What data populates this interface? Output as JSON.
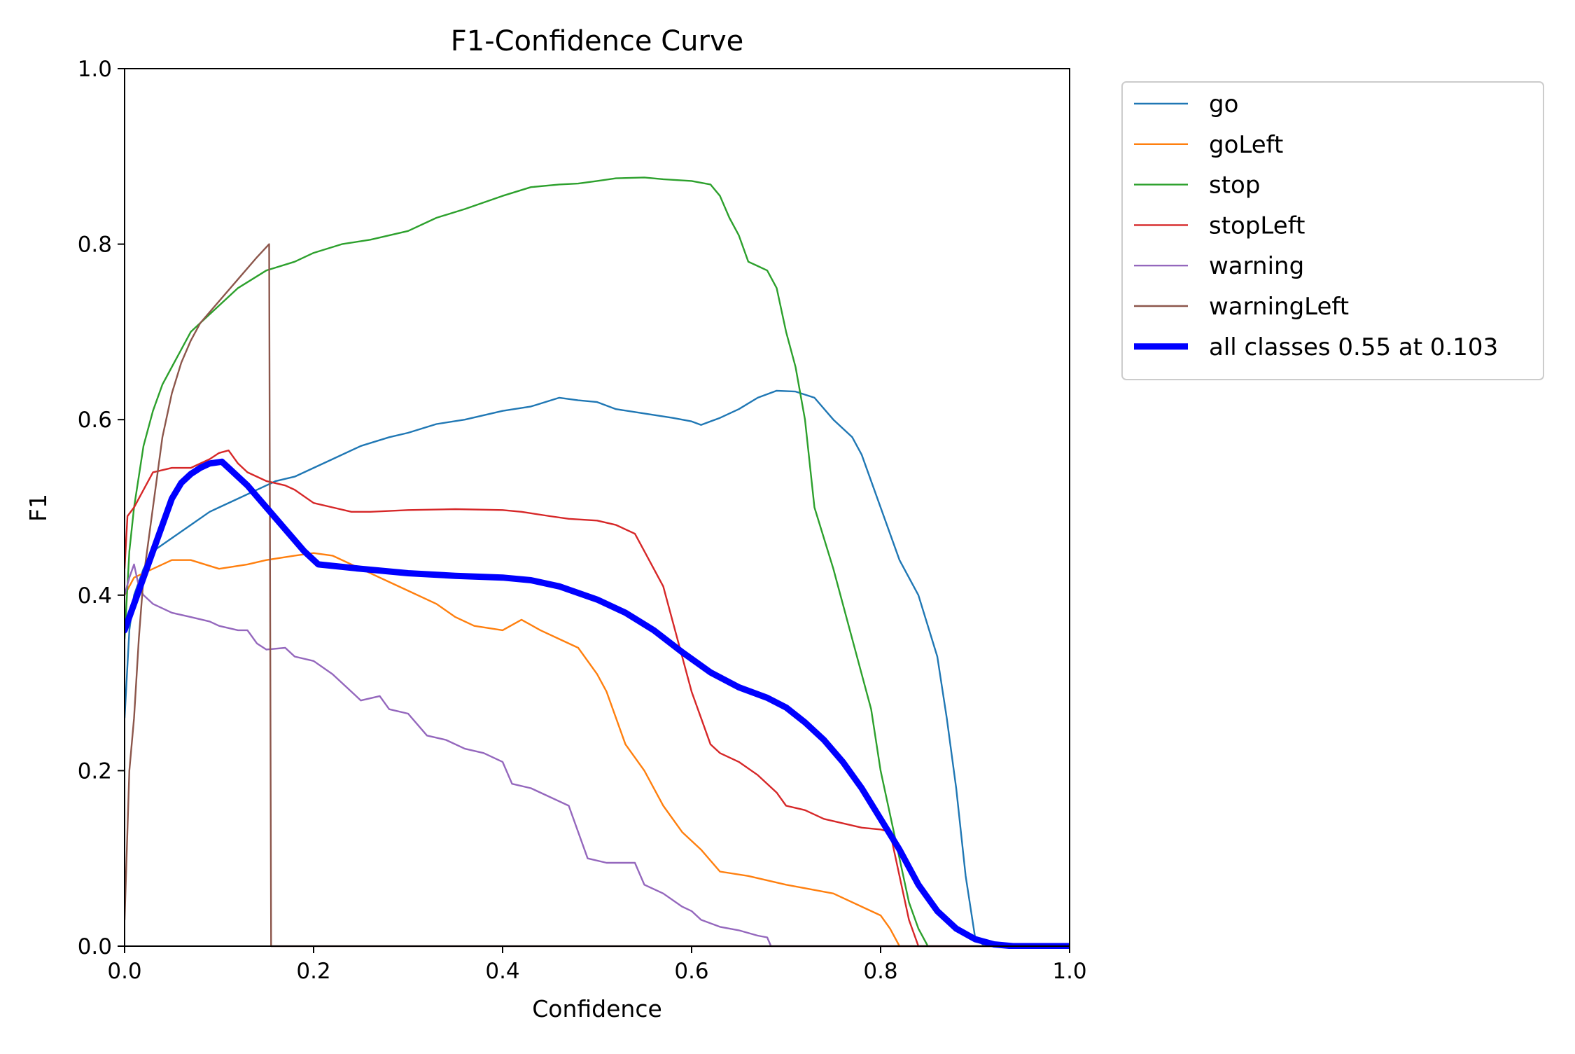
{
  "chart_data": {
    "type": "line",
    "title": "F1-Confidence Curve",
    "xlabel": "Confidence",
    "ylabel": "F1",
    "xlim": [
      0.0,
      1.0
    ],
    "ylim": [
      0.0,
      1.0
    ],
    "xticks": [
      "0.0",
      "0.2",
      "0.4",
      "0.6",
      "0.8",
      "1.0"
    ],
    "yticks": [
      "0.0",
      "0.2",
      "0.4",
      "0.6",
      "0.8",
      "1.0"
    ],
    "grid": false,
    "legend_position": "outside-top-right",
    "series": [
      {
        "name": "go",
        "color": "#1f77b4",
        "points": [
          [
            0.0,
            0.26
          ],
          [
            0.005,
            0.36
          ],
          [
            0.01,
            0.4
          ],
          [
            0.02,
            0.43
          ],
          [
            0.03,
            0.45
          ],
          [
            0.05,
            0.465
          ],
          [
            0.07,
            0.48
          ],
          [
            0.09,
            0.495
          ],
          [
            0.1,
            0.5
          ],
          [
            0.12,
            0.51
          ],
          [
            0.14,
            0.52
          ],
          [
            0.16,
            0.53
          ],
          [
            0.18,
            0.535
          ],
          [
            0.2,
            0.545
          ],
          [
            0.22,
            0.555
          ],
          [
            0.25,
            0.57
          ],
          [
            0.28,
            0.58
          ],
          [
            0.3,
            0.585
          ],
          [
            0.33,
            0.595
          ],
          [
            0.36,
            0.6
          ],
          [
            0.4,
            0.61
          ],
          [
            0.43,
            0.615
          ],
          [
            0.46,
            0.625
          ],
          [
            0.48,
            0.622
          ],
          [
            0.5,
            0.62
          ],
          [
            0.52,
            0.612
          ],
          [
            0.55,
            0.607
          ],
          [
            0.58,
            0.602
          ],
          [
            0.6,
            0.598
          ],
          [
            0.61,
            0.594
          ],
          [
            0.63,
            0.602
          ],
          [
            0.65,
            0.612
          ],
          [
            0.67,
            0.625
          ],
          [
            0.69,
            0.633
          ],
          [
            0.71,
            0.632
          ],
          [
            0.73,
            0.625
          ],
          [
            0.75,
            0.6
          ],
          [
            0.77,
            0.58
          ],
          [
            0.78,
            0.56
          ],
          [
            0.8,
            0.5
          ],
          [
            0.82,
            0.44
          ],
          [
            0.84,
            0.4
          ],
          [
            0.86,
            0.33
          ],
          [
            0.87,
            0.26
          ],
          [
            0.88,
            0.18
          ],
          [
            0.89,
            0.08
          ],
          [
            0.9,
            0.01
          ],
          [
            0.91,
            0.0
          ],
          [
            1.0,
            0.0
          ]
        ]
      },
      {
        "name": "goLeft",
        "color": "#ff7f0e",
        "points": [
          [
            0.0,
            0.4
          ],
          [
            0.01,
            0.42
          ],
          [
            0.03,
            0.43
          ],
          [
            0.05,
            0.44
          ],
          [
            0.07,
            0.44
          ],
          [
            0.1,
            0.43
          ],
          [
            0.13,
            0.435
          ],
          [
            0.15,
            0.44
          ],
          [
            0.18,
            0.445
          ],
          [
            0.2,
            0.448
          ],
          [
            0.22,
            0.445
          ],
          [
            0.25,
            0.43
          ],
          [
            0.28,
            0.415
          ],
          [
            0.3,
            0.405
          ],
          [
            0.33,
            0.39
          ],
          [
            0.35,
            0.375
          ],
          [
            0.37,
            0.365
          ],
          [
            0.4,
            0.36
          ],
          [
            0.42,
            0.372
          ],
          [
            0.44,
            0.36
          ],
          [
            0.46,
            0.35
          ],
          [
            0.48,
            0.34
          ],
          [
            0.5,
            0.31
          ],
          [
            0.51,
            0.29
          ],
          [
            0.52,
            0.26
          ],
          [
            0.53,
            0.23
          ],
          [
            0.55,
            0.2
          ],
          [
            0.57,
            0.16
          ],
          [
            0.59,
            0.13
          ],
          [
            0.61,
            0.11
          ],
          [
            0.63,
            0.085
          ],
          [
            0.66,
            0.08
          ],
          [
            0.7,
            0.07
          ],
          [
            0.75,
            0.06
          ],
          [
            0.78,
            0.045
          ],
          [
            0.8,
            0.035
          ],
          [
            0.81,
            0.02
          ],
          [
            0.82,
            0.0
          ],
          [
            1.0,
            0.0
          ]
        ]
      },
      {
        "name": "stop",
        "color": "#2ca02c",
        "points": [
          [
            0.0,
            0.35
          ],
          [
            0.005,
            0.45
          ],
          [
            0.01,
            0.5
          ],
          [
            0.02,
            0.57
          ],
          [
            0.03,
            0.61
          ],
          [
            0.04,
            0.64
          ],
          [
            0.05,
            0.66
          ],
          [
            0.07,
            0.7
          ],
          [
            0.09,
            0.72
          ],
          [
            0.1,
            0.73
          ],
          [
            0.12,
            0.75
          ],
          [
            0.15,
            0.77
          ],
          [
            0.18,
            0.78
          ],
          [
            0.2,
            0.79
          ],
          [
            0.23,
            0.8
          ],
          [
            0.26,
            0.805
          ],
          [
            0.3,
            0.815
          ],
          [
            0.33,
            0.83
          ],
          [
            0.36,
            0.84
          ],
          [
            0.4,
            0.855
          ],
          [
            0.43,
            0.865
          ],
          [
            0.46,
            0.868
          ],
          [
            0.48,
            0.869
          ],
          [
            0.5,
            0.872
          ],
          [
            0.52,
            0.875
          ],
          [
            0.55,
            0.876
          ],
          [
            0.57,
            0.874
          ],
          [
            0.6,
            0.872
          ],
          [
            0.62,
            0.868
          ],
          [
            0.63,
            0.855
          ],
          [
            0.64,
            0.83
          ],
          [
            0.65,
            0.81
          ],
          [
            0.66,
            0.78
          ],
          [
            0.67,
            0.775
          ],
          [
            0.68,
            0.77
          ],
          [
            0.69,
            0.75
          ],
          [
            0.7,
            0.7
          ],
          [
            0.71,
            0.66
          ],
          [
            0.72,
            0.6
          ],
          [
            0.73,
            0.5
          ],
          [
            0.75,
            0.43
          ],
          [
            0.77,
            0.35
          ],
          [
            0.79,
            0.27
          ],
          [
            0.8,
            0.2
          ],
          [
            0.81,
            0.15
          ],
          [
            0.82,
            0.1
          ],
          [
            0.83,
            0.05
          ],
          [
            0.84,
            0.02
          ],
          [
            0.85,
            0.0
          ],
          [
            1.0,
            0.0
          ]
        ]
      },
      {
        "name": "stopLeft",
        "color": "#d62728",
        "points": [
          [
            0.0,
            0.43
          ],
          [
            0.003,
            0.49
          ],
          [
            0.01,
            0.5
          ],
          [
            0.02,
            0.52
          ],
          [
            0.03,
            0.54
          ],
          [
            0.05,
            0.545
          ],
          [
            0.07,
            0.545
          ],
          [
            0.09,
            0.555
          ],
          [
            0.1,
            0.562
          ],
          [
            0.11,
            0.565
          ],
          [
            0.12,
            0.55
          ],
          [
            0.13,
            0.54
          ],
          [
            0.15,
            0.53
          ],
          [
            0.17,
            0.525
          ],
          [
            0.18,
            0.52
          ],
          [
            0.2,
            0.505
          ],
          [
            0.22,
            0.5
          ],
          [
            0.24,
            0.495
          ],
          [
            0.26,
            0.495
          ],
          [
            0.3,
            0.497
          ],
          [
            0.35,
            0.498
          ],
          [
            0.4,
            0.497
          ],
          [
            0.42,
            0.495
          ],
          [
            0.45,
            0.49
          ],
          [
            0.47,
            0.487
          ],
          [
            0.5,
            0.485
          ],
          [
            0.52,
            0.48
          ],
          [
            0.54,
            0.47
          ],
          [
            0.55,
            0.45
          ],
          [
            0.57,
            0.41
          ],
          [
            0.58,
            0.37
          ],
          [
            0.59,
            0.33
          ],
          [
            0.6,
            0.29
          ],
          [
            0.61,
            0.26
          ],
          [
            0.62,
            0.23
          ],
          [
            0.63,
            0.22
          ],
          [
            0.65,
            0.21
          ],
          [
            0.67,
            0.195
          ],
          [
            0.68,
            0.185
          ],
          [
            0.69,
            0.175
          ],
          [
            0.7,
            0.16
          ],
          [
            0.72,
            0.155
          ],
          [
            0.74,
            0.145
          ],
          [
            0.76,
            0.14
          ],
          [
            0.78,
            0.135
          ],
          [
            0.8,
            0.133
          ],
          [
            0.81,
            0.13
          ],
          [
            0.82,
            0.08
          ],
          [
            0.83,
            0.03
          ],
          [
            0.84,
            0.0
          ],
          [
            1.0,
            0.0
          ]
        ]
      },
      {
        "name": "warning",
        "color": "#9467bd",
        "points": [
          [
            0.0,
            0.4
          ],
          [
            0.005,
            0.42
          ],
          [
            0.01,
            0.435
          ],
          [
            0.015,
            0.41
          ],
          [
            0.02,
            0.4
          ],
          [
            0.03,
            0.39
          ],
          [
            0.05,
            0.38
          ],
          [
            0.07,
            0.375
          ],
          [
            0.09,
            0.37
          ],
          [
            0.1,
            0.365
          ],
          [
            0.12,
            0.36
          ],
          [
            0.13,
            0.36
          ],
          [
            0.14,
            0.345
          ],
          [
            0.15,
            0.338
          ],
          [
            0.17,
            0.34
          ],
          [
            0.18,
            0.33
          ],
          [
            0.2,
            0.325
          ],
          [
            0.22,
            0.31
          ],
          [
            0.23,
            0.3
          ],
          [
            0.25,
            0.28
          ],
          [
            0.27,
            0.285
          ],
          [
            0.28,
            0.27
          ],
          [
            0.3,
            0.265
          ],
          [
            0.32,
            0.24
          ],
          [
            0.34,
            0.235
          ],
          [
            0.36,
            0.225
          ],
          [
            0.38,
            0.22
          ],
          [
            0.4,
            0.21
          ],
          [
            0.41,
            0.185
          ],
          [
            0.43,
            0.18
          ],
          [
            0.45,
            0.17
          ],
          [
            0.47,
            0.16
          ],
          [
            0.48,
            0.13
          ],
          [
            0.49,
            0.1
          ],
          [
            0.51,
            0.095
          ],
          [
            0.54,
            0.095
          ],
          [
            0.55,
            0.07
          ],
          [
            0.57,
            0.06
          ],
          [
            0.59,
            0.045
          ],
          [
            0.6,
            0.04
          ],
          [
            0.61,
            0.03
          ],
          [
            0.63,
            0.022
          ],
          [
            0.65,
            0.018
          ],
          [
            0.67,
            0.012
          ],
          [
            0.68,
            0.01
          ],
          [
            0.684,
            0.0
          ],
          [
            1.0,
            0.0
          ]
        ]
      },
      {
        "name": "warningLeft",
        "color": "#8c564b",
        "points": [
          [
            0.0,
            0.03
          ],
          [
            0.005,
            0.2
          ],
          [
            0.01,
            0.26
          ],
          [
            0.015,
            0.35
          ],
          [
            0.02,
            0.42
          ],
          [
            0.03,
            0.5
          ],
          [
            0.04,
            0.58
          ],
          [
            0.05,
            0.63
          ],
          [
            0.06,
            0.665
          ],
          [
            0.07,
            0.69
          ],
          [
            0.08,
            0.71
          ],
          [
            0.1,
            0.735
          ],
          [
            0.12,
            0.76
          ],
          [
            0.14,
            0.785
          ],
          [
            0.153,
            0.8
          ],
          [
            0.155,
            0.0
          ],
          [
            1.0,
            0.0
          ]
        ]
      },
      {
        "name": "all classes 0.55 at 0.103",
        "color": "#0000ff",
        "bold": true,
        "points": [
          [
            0.0,
            0.36
          ],
          [
            0.01,
            0.39
          ],
          [
            0.02,
            0.42
          ],
          [
            0.03,
            0.45
          ],
          [
            0.04,
            0.48
          ],
          [
            0.05,
            0.51
          ],
          [
            0.06,
            0.528
          ],
          [
            0.07,
            0.538
          ],
          [
            0.08,
            0.545
          ],
          [
            0.09,
            0.55
          ],
          [
            0.103,
            0.552
          ],
          [
            0.11,
            0.545
          ],
          [
            0.13,
            0.525
          ],
          [
            0.15,
            0.5
          ],
          [
            0.17,
            0.475
          ],
          [
            0.19,
            0.45
          ],
          [
            0.205,
            0.435
          ],
          [
            0.25,
            0.43
          ],
          [
            0.3,
            0.425
          ],
          [
            0.35,
            0.422
          ],
          [
            0.4,
            0.42
          ],
          [
            0.43,
            0.417
          ],
          [
            0.46,
            0.41
          ],
          [
            0.5,
            0.395
          ],
          [
            0.53,
            0.38
          ],
          [
            0.56,
            0.36
          ],
          [
            0.59,
            0.335
          ],
          [
            0.62,
            0.312
          ],
          [
            0.65,
            0.295
          ],
          [
            0.68,
            0.283
          ],
          [
            0.7,
            0.272
          ],
          [
            0.72,
            0.255
          ],
          [
            0.74,
            0.235
          ],
          [
            0.76,
            0.21
          ],
          [
            0.78,
            0.18
          ],
          [
            0.8,
            0.145
          ],
          [
            0.82,
            0.11
          ],
          [
            0.84,
            0.07
          ],
          [
            0.86,
            0.04
          ],
          [
            0.88,
            0.02
          ],
          [
            0.9,
            0.008
          ],
          [
            0.92,
            0.002
          ],
          [
            0.94,
            0.0
          ],
          [
            1.0,
            0.0
          ]
        ]
      }
    ]
  }
}
